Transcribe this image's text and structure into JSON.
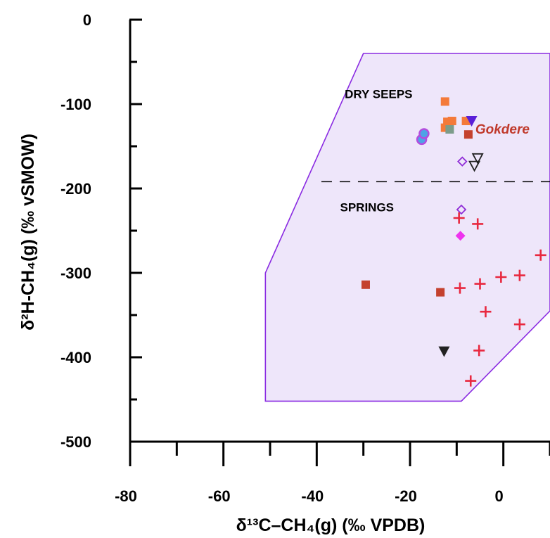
{
  "chart_data": {
    "type": "scatter",
    "xlabel": "δ¹³C–CH₄(g) (‰ VPDB)",
    "ylabel": "δ²H-CH₄(g) (‰ vSMOW)",
    "xlim": [
      -80,
      10
    ],
    "ylim": [
      -500,
      0
    ],
    "x_ticks": [
      -80,
      -60,
      -40,
      -20,
      0
    ],
    "x_tick_labels": [
      "-80",
      "-60",
      "-40",
      "-20",
      "0"
    ],
    "y_ticks": [
      0,
      -100,
      -200,
      -300,
      -400,
      -500
    ],
    "y_tick_labels": [
      "0",
      "-100",
      "-200",
      "-300",
      "-400",
      "-500"
    ],
    "annotations": [
      {
        "id": "dry-seeps",
        "text": "DRY SEEPS",
        "x": -34,
        "y": -93,
        "color": "#000000"
      },
      {
        "id": "springs",
        "text": "SPRINGS",
        "x": -35,
        "y": -227,
        "color": "#000000"
      },
      {
        "id": "gokdere",
        "text": "Gokdere",
        "x": -6,
        "y": -135,
        "color": "#c0392b"
      }
    ],
    "divider_y": -192,
    "divider_x_range": [
      -39,
      10
    ],
    "field_polygon": [
      [
        -30,
        -40
      ],
      [
        10,
        -40
      ],
      [
        10,
        -345
      ],
      [
        -9,
        -452
      ],
      [
        -51,
        -452
      ],
      [
        -51,
        -300
      ],
      [
        -30,
        -40
      ]
    ],
    "colors": {
      "field_fill": "#eee6fa",
      "field_stroke": "#8a2be2",
      "orange": "#f47a3a",
      "dark_red": "#c4412e",
      "gray_green": "#7c9c8a",
      "blue_circle": "#4fa3e6",
      "magenta": "#ee33ee",
      "violet": "#8e2bd6",
      "indigo": "#5a1fd8",
      "red_cross": "#e8283f",
      "black": "#222222"
    },
    "series": [
      {
        "marker": "square",
        "color": "#f47a3a",
        "points": [
          [
            -12.5,
            -97
          ],
          [
            -12.5,
            -128
          ],
          [
            -12,
            -121
          ],
          [
            -11,
            -120
          ],
          [
            -8,
            -120
          ]
        ]
      },
      {
        "marker": "square",
        "color": "#7c9c8a",
        "points": [
          [
            -11.5,
            -130
          ]
        ]
      },
      {
        "marker": "square",
        "color": "#c4412e",
        "points": [
          [
            -7.5,
            -136
          ],
          [
            -29.5,
            -314
          ],
          [
            -13.5,
            -323
          ]
        ]
      },
      {
        "marker": "circle",
        "color": "#4fa3e6",
        "stroke": "#b44dde",
        "points": [
          [
            -17.5,
            -142
          ],
          [
            -17,
            -135
          ]
        ]
      },
      {
        "marker": "triangle-down",
        "color": "#5a1fd8",
        "points": [
          [
            -6.8,
            -120
          ]
        ]
      },
      {
        "marker": "triangle-down-open",
        "color": "#222222",
        "points": [
          [
            -5.5,
            -164
          ],
          [
            -6.2,
            -173
          ]
        ]
      },
      {
        "marker": "diamond-open",
        "color": "#8e2bd6",
        "points": [
          [
            -8.8,
            -168
          ],
          [
            -9,
            -225
          ]
        ]
      },
      {
        "marker": "diamond",
        "color": "#ee33ee",
        "points": [
          [
            -9.2,
            -256
          ]
        ]
      },
      {
        "marker": "triangle-down",
        "color": "#222222",
        "points": [
          [
            -12.7,
            -393
          ]
        ]
      },
      {
        "marker": "plus",
        "color": "#e8283f",
        "points": [
          [
            -9.5,
            -235
          ],
          [
            -5.5,
            -242
          ],
          [
            8,
            -279
          ],
          [
            -9.3,
            -318
          ],
          [
            -5,
            -313
          ],
          [
            -0.5,
            -305
          ],
          [
            3.5,
            -303
          ],
          [
            -3.8,
            -346
          ],
          [
            3.5,
            -361
          ],
          [
            -5.2,
            -392
          ],
          [
            -7,
            -428
          ]
        ]
      }
    ]
  }
}
